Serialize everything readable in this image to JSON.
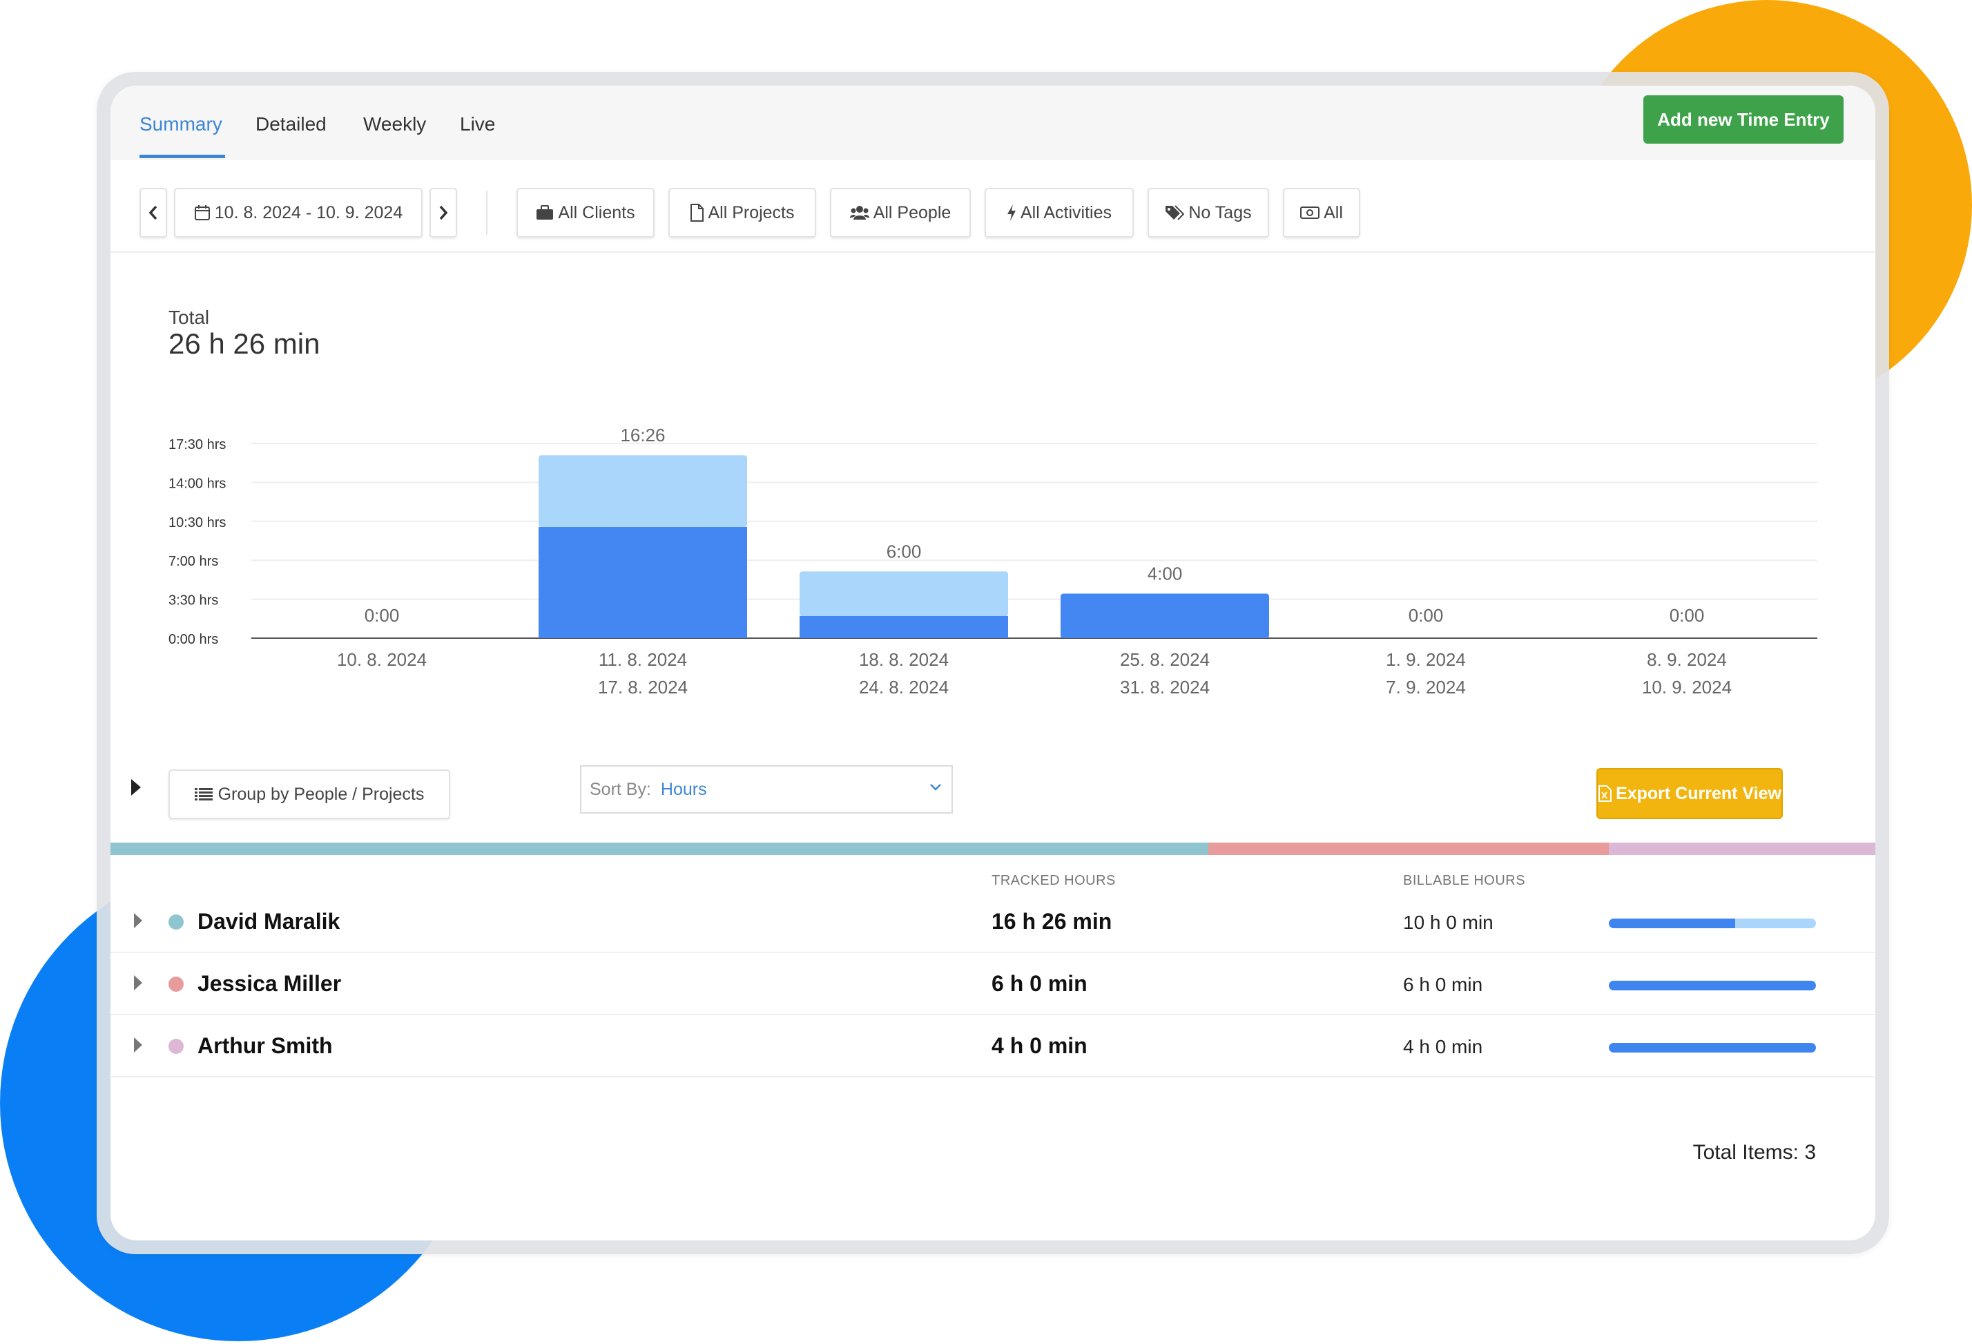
{
  "tabs": [
    {
      "label": "Summary",
      "active": true
    },
    {
      "label": "Detailed",
      "active": false
    },
    {
      "label": "Weekly",
      "active": false
    },
    {
      "label": "Live",
      "active": false
    }
  ],
  "add_button_label": "Add new Time Entry",
  "filters": {
    "date_range": "10. 8. 2024 - 10. 9. 2024",
    "clients": "All Clients",
    "projects": "All Projects",
    "people": "All People",
    "activities": "All Activities",
    "tags": "No Tags",
    "billable": "All"
  },
  "total": {
    "label": "Total",
    "value": "26 h 26 min"
  },
  "chart_data": {
    "type": "bar",
    "stacked": true,
    "categories": [
      [
        "10. 8. 2024",
        ""
      ],
      [
        "11. 8. 2024",
        "17. 8. 2024"
      ],
      [
        "18. 8. 2024",
        "24. 8. 2024"
      ],
      [
        "25. 8. 2024",
        "31. 8. 2024"
      ],
      [
        "1. 9. 2024",
        "7. 9. 2024"
      ],
      [
        "8. 9. 2024",
        "10. 9. 2024"
      ]
    ],
    "series": [
      {
        "values": [
          0,
          10,
          2,
          4,
          0,
          0
        ],
        "color": "#4487f2"
      },
      {
        "values": [
          0,
          6.43,
          4,
          0,
          0,
          0
        ],
        "color": "#abd6fb"
      }
    ],
    "data_labels": [
      "0:00",
      "16:26",
      "6:00",
      "4:00",
      "0:00",
      "0:00"
    ],
    "yticks": [
      {
        "value": 0,
        "label": "0:00 hrs"
      },
      {
        "value": 3.5,
        "label": "3:30 hrs"
      },
      {
        "value": 7,
        "label": "7:00 hrs"
      },
      {
        "value": 10.5,
        "label": "10:30 hrs"
      },
      {
        "value": 14,
        "label": "14:00 hrs"
      },
      {
        "value": 17.5,
        "label": "17:30 hrs"
      }
    ],
    "ylim": [
      0,
      17.5
    ],
    "grid": true
  },
  "group_by_label": "Group by People / Projects",
  "sort": {
    "label": "Sort By:",
    "value": "Hours"
  },
  "export_label": "Export Current View",
  "columns": {
    "tracked": "TRACKED HOURS",
    "billable": "BILLABLE HOURS"
  },
  "distribution_colors": [
    "#8fc5cf",
    "#e89b9b",
    "#dcb8d6"
  ],
  "distribution_fractions": [
    0.622,
    0.227,
    0.151
  ],
  "people": [
    {
      "name": "David Maralik",
      "color": "#8fc5cf",
      "tracked": "16 h 26 min",
      "billable": "10 h 0 min",
      "billable_fraction": 0.61
    },
    {
      "name": "Jessica Miller",
      "color": "#e89b9b",
      "tracked": "6 h 0 min",
      "billable": "6 h 0 min",
      "billable_fraction": 1.0
    },
    {
      "name": "Arthur Smith",
      "color": "#dcb8d6",
      "tracked": "4 h 0 min",
      "billable": "4 h 0 min",
      "billable_fraction": 1.0
    }
  ],
  "total_items": "Total Items: 3"
}
